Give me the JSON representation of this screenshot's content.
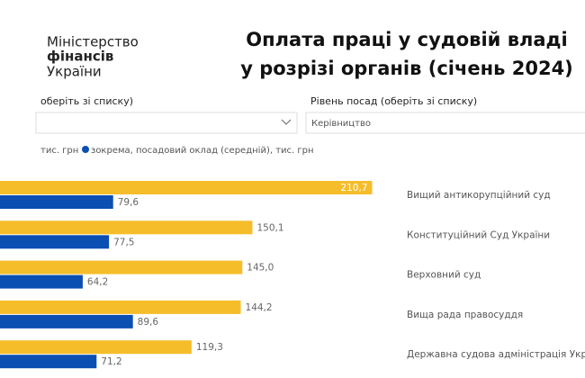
{
  "header": {
    "logo": [
      "Міністерство",
      "фінансів",
      "України"
    ],
    "title": [
      "Оплата праці у судовій владі",
      "у розрізі органів (січень 2024)"
    ]
  },
  "filters": [
    {
      "label": "оберіть зі списку)",
      "value": null
    },
    {
      "label": "Рівень посад (оберіть зі списку)",
      "value": "Керівництво"
    }
  ],
  "chart_data": {
    "type": "hbar",
    "categories": [
      "Вищий антикорупційний суд",
      "Конституційний Суд України",
      "Верховний суд",
      "Вища рада правосуддя",
      "Державна судова адміністрація України"
    ],
    "series": [
      {
        "name": "тис. грн",
        "color": "#f6bd2b",
        "values": [
          210.7,
          150.1,
          145,
          144.2,
          119.3
        ],
        "value_labels": [
          "210,7",
          "150,1",
          "145,0",
          "144,2",
          "119,3"
        ]
      },
      {
        "name": "зокрема, посадовий оклад (середній), тис. грн",
        "color": "#0b4fb3",
        "values": [
          79.6,
          77.5,
          64.2,
          89.6,
          71.2
        ],
        "value_labels": [
          "79,6",
          "77,5",
          "64,2",
          "89,6",
          "71,2"
        ]
      }
    ]
  }
}
